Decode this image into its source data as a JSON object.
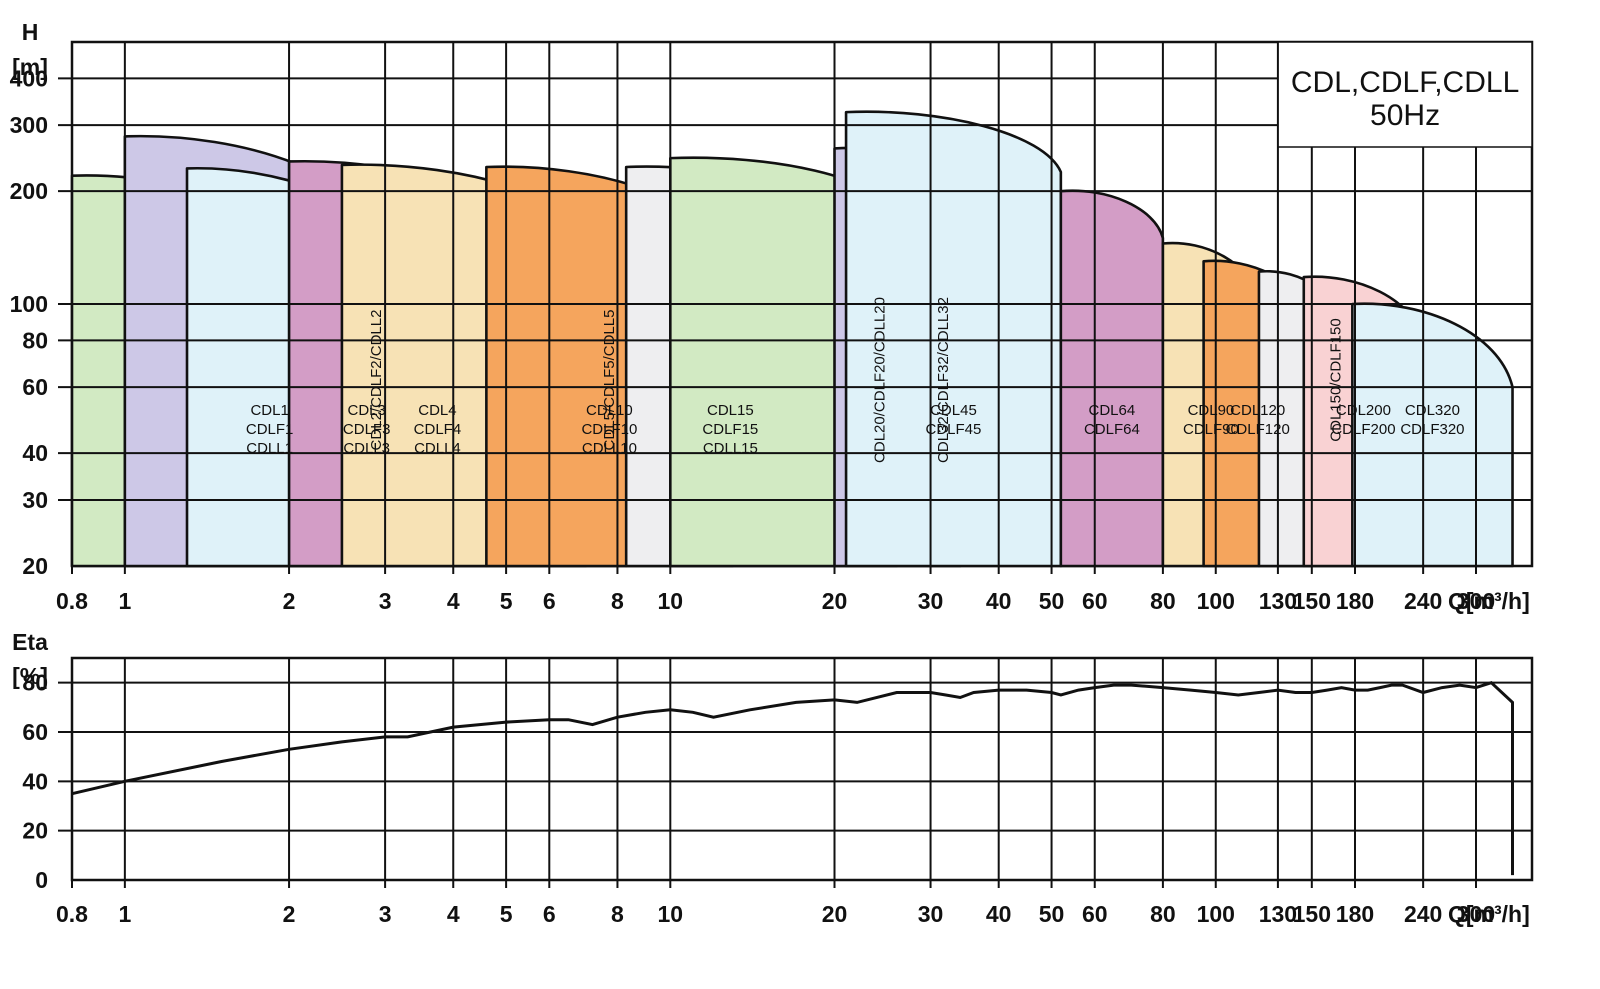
{
  "chart_data": [
    {
      "type": "area",
      "title_lines": [
        "CDL,CDLF,CDLL",
        "50Hz"
      ],
      "xlabel": "Q[m³/h]",
      "ylabel_lines": [
        "H",
        "[m]"
      ],
      "xscale": "log",
      "yscale": "log",
      "xlim": [
        0.8,
        380
      ],
      "ylim": [
        20,
        500
      ],
      "xticks": [
        0.8,
        1,
        2,
        3,
        4,
        5,
        6,
        8,
        10,
        20,
        30,
        40,
        50,
        60,
        80,
        100,
        130,
        150,
        180,
        240,
        300
      ],
      "yticks": [
        20,
        30,
        40,
        60,
        80,
        100,
        200,
        300,
        400
      ],
      "grid": true,
      "colors": {
        "green": "#d2eac3",
        "lavender": "#cdc8e7",
        "lightblue": "#dff2f9",
        "pink": "#d39dc6",
        "cream": "#f7e2b5",
        "orange": "#f5a55d",
        "grey": "#eeeef0",
        "salmon": "#f9d2d3",
        "outline": "#111111"
      },
      "zones": [
        {
          "label_lines": [
            "CDL1",
            "CDLF1",
            "CDLL1"
          ],
          "color": "green",
          "q_min": 0.8,
          "q_max": 2.4,
          "h_start": 220,
          "h_end": 107
        },
        {
          "label_lines": [
            "CDL2/CDLF2/CDLL2"
          ],
          "label_vertical": true,
          "color": "lavender",
          "q_min": 1.0,
          "q_max": 3.1,
          "h_start": 280,
          "h_end": 140
        },
        {
          "label_lines": [
            "CDL3",
            "CDLF3",
            "CDLL3"
          ],
          "color": "lightblue",
          "q_min": 1.3,
          "q_max": 4.6,
          "h_start": 230,
          "h_end": 65
        },
        {
          "label_lines": [
            "CDL4",
            "CDLF4",
            "CDLL4"
          ],
          "color": "pink",
          "q_min": 2.0,
          "q_max": 7.0,
          "h_start": 240,
          "h_end": 110
        },
        {
          "label_lines": [
            "CDL5/CDLF5/CDLL5"
          ],
          "label_vertical": true,
          "color": "cream",
          "q_min": 2.5,
          "q_max": 8.3,
          "h_start": 235,
          "h_end": 123
        },
        {
          "label_lines": [
            "CDL10",
            "CDLF10",
            "CDLL10"
          ],
          "color": "orange",
          "q_min": 4.6,
          "q_max": 13,
          "h_start": 232,
          "h_end": 132
        },
        {
          "label_lines": [
            "CDL15",
            "CDLF15",
            "CDLL15"
          ],
          "color": "grey",
          "q_min": 8.3,
          "q_max": 20,
          "h_start": 232,
          "h_end": 162
        },
        {
          "label_lines": [
            "CDL20/CDLF20/CDLL20"
          ],
          "label_vertical": true,
          "color": "green",
          "q_min": 10,
          "q_max": 26,
          "h_start": 245,
          "h_end": 175
        },
        {
          "label_lines": [
            "CDL32/CDLF32/CDLL32"
          ],
          "label_vertical": true,
          "color": "lavender",
          "q_min": 20,
          "q_max": 34,
          "h_start": 260,
          "h_end": 200
        },
        {
          "label_lines": [
            "CDL45",
            "CDLF45"
          ],
          "color": "lightblue",
          "q_min": 21,
          "q_max": 52,
          "h_start": 325,
          "h_end": 225
        },
        {
          "label_lines": [
            "CDL64",
            "CDLF64"
          ],
          "color": "pink",
          "q_min": 52,
          "q_max": 80,
          "h_start": 200,
          "h_end": 150
        },
        {
          "label_lines": [
            "CDL90",
            "CDLF90"
          ],
          "color": "cream",
          "q_min": 80,
          "q_max": 120,
          "h_start": 145,
          "h_end": 102
        },
        {
          "label_lines": [
            "CDL120",
            "CDLF120"
          ],
          "color": "orange",
          "q_min": 95,
          "q_max": 150,
          "h_start": 130,
          "h_end": 90
        },
        {
          "label_lines": [
            "CDL150/CDLF150"
          ],
          "label_vertical": true,
          "color": "grey",
          "q_min": 120,
          "q_max": 178,
          "h_start": 122,
          "h_end": 80
        },
        {
          "label_lines": [
            "CDL200",
            "CDLF200"
          ],
          "color": "salmon",
          "q_min": 145,
          "q_max": 240,
          "h_start": 118,
          "h_end": 80
        },
        {
          "label_lines": [
            "CDL320",
            "CDLF320"
          ],
          "color": "lightblue",
          "q_min": 178,
          "q_max": 350,
          "h_start": 100,
          "h_end": 60
        }
      ]
    },
    {
      "type": "line",
      "xlabel": "Q[m³/h]",
      "ylabel_lines": [
        "Eta",
        "[%]"
      ],
      "xscale": "log",
      "xlim": [
        0.8,
        380
      ],
      "ylim": [
        0,
        90
      ],
      "xticks": [
        0.8,
        1,
        2,
        3,
        4,
        5,
        6,
        8,
        10,
        20,
        30,
        40,
        50,
        60,
        80,
        100,
        130,
        150,
        180,
        240,
        300
      ],
      "yticks": [
        0,
        20,
        40,
        60,
        80
      ],
      "grid": true,
      "series": [
        {
          "x": [
            0.8,
            1,
            1.5,
            2,
            2.5,
            3,
            3.3,
            4,
            5,
            6,
            6.5,
            7.2,
            8,
            9,
            10,
            11,
            12,
            14,
            17,
            20,
            22,
            26,
            30,
            32,
            34,
            36,
            40,
            45,
            50,
            52,
            56,
            60,
            65,
            70,
            80,
            90,
            100,
            110,
            120,
            130,
            140,
            150,
            160,
            170,
            180,
            190,
            200,
            210,
            220,
            240,
            260,
            280,
            300,
            320,
            350,
            350
          ],
          "y": [
            35,
            40,
            48,
            53,
            56,
            58,
            58,
            62,
            64,
            65,
            65,
            63,
            66,
            68,
            69,
            68,
            66,
            69,
            72,
            73,
            72,
            76,
            76,
            75,
            74,
            76,
            77,
            77,
            76,
            75,
            77,
            78,
            79,
            79,
            78,
            77,
            76,
            75,
            76,
            77,
            76,
            76,
            77,
            78,
            77,
            77,
            78,
            79,
            79,
            76,
            78,
            79,
            78,
            80,
            72,
            2
          ]
        }
      ]
    }
  ]
}
